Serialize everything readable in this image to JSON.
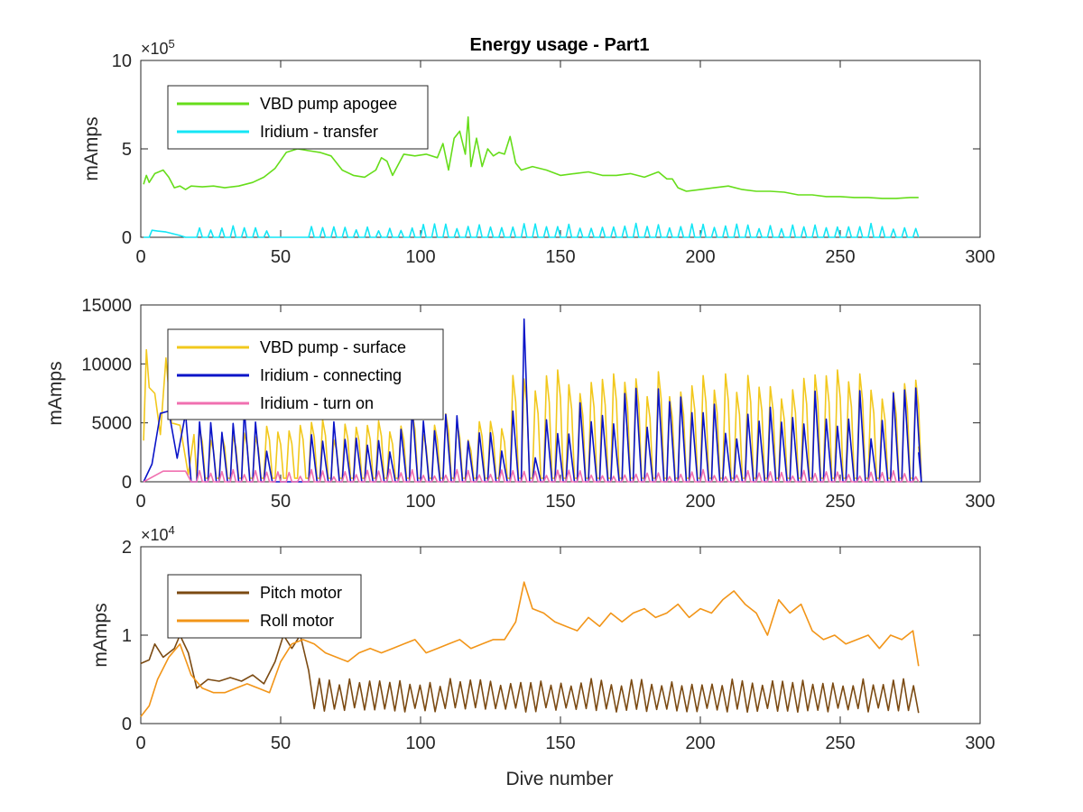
{
  "figure": {
    "title": "Energy usage - Part1",
    "xlabel": "Dive number"
  },
  "chart_data": [
    {
      "type": "line",
      "title": "Energy usage - Part1",
      "xlabel": "",
      "ylabel": "mAmps",
      "xlim": [
        0,
        300
      ],
      "ylim": [
        0,
        1000000
      ],
      "xticks": [
        0,
        50,
        100,
        150,
        200,
        250,
        300
      ],
      "yticks": [
        0,
        500000,
        1000000
      ],
      "ytick_labels": [
        "0",
        "5",
        "10"
      ],
      "exponent_label": "×10",
      "exponent_power": "5",
      "legend_position": "top-left",
      "series": [
        {
          "name": "VBD pump apogee",
          "color": "#66dd1a",
          "x": [
            1,
            2,
            3,
            5,
            8,
            10,
            12,
            14,
            16,
            18,
            22,
            26,
            30,
            35,
            40,
            44,
            48,
            52,
            56,
            60,
            64,
            68,
            72,
            76,
            80,
            84,
            86,
            88,
            90,
            94,
            98,
            102,
            106,
            108,
            110,
            112,
            114,
            116,
            117,
            118,
            120,
            122,
            124,
            126,
            128,
            130,
            132,
            134,
            136,
            140,
            145,
            150,
            155,
            160,
            165,
            170,
            175,
            180,
            185,
            188,
            190,
            192,
            195,
            200,
            205,
            210,
            215,
            220,
            225,
            230,
            235,
            240,
            245,
            250,
            255,
            260,
            265,
            270,
            275,
            278
          ],
          "y": [
            300000,
            350000,
            310000,
            360000,
            380000,
            340000,
            280000,
            290000,
            270000,
            290000,
            285000,
            290000,
            280000,
            290000,
            310000,
            340000,
            390000,
            480000,
            500000,
            490000,
            480000,
            460000,
            380000,
            350000,
            340000,
            380000,
            450000,
            430000,
            350000,
            470000,
            460000,
            470000,
            450000,
            530000,
            380000,
            560000,
            600000,
            470000,
            680000,
            400000,
            560000,
            400000,
            500000,
            460000,
            480000,
            470000,
            570000,
            420000,
            380000,
            400000,
            380000,
            350000,
            360000,
            370000,
            350000,
            350000,
            360000,
            340000,
            370000,
            330000,
            330000,
            280000,
            260000,
            270000,
            280000,
            290000,
            270000,
            260000,
            260000,
            255000,
            240000,
            240000,
            230000,
            230000,
            225000,
            225000,
            220000,
            220000,
            225000,
            225000
          ]
        },
        {
          "name": "Iridium - transfer",
          "color": "#14e6f5",
          "pattern": "periodic spikes ~30000-75000 on a near-zero baseline, one spike every ~4 dives from dive 20 to 278"
        }
      ]
    },
    {
      "type": "line",
      "xlabel": "",
      "ylabel": "mAmps",
      "xlim": [
        0,
        300
      ],
      "ylim": [
        0,
        15000
      ],
      "xticks": [
        0,
        50,
        100,
        150,
        200,
        250,
        300
      ],
      "yticks": [
        0,
        5000,
        10000,
        15000
      ],
      "ytick_labels": [
        "0",
        "5000",
        "10000",
        "15000"
      ],
      "legend_position": "top-left",
      "series": [
        {
          "name": "VBD pump - surface",
          "color": "#f2c81d",
          "pattern": "square-ish pulses between ~300 and ~4000-9500, amplitude rising after dive 130"
        },
        {
          "name": "Iridium - connecting",
          "color": "#0a14c8",
          "pattern": "periodic spikes ~2000-8000 every ~4 dives, tallest ~13800 near dive 137"
        },
        {
          "name": "Iridium - turn on",
          "color": "#f070b0",
          "pattern": "small periodic spikes ~500-1000, ~900 plateau near dives 10-18"
        }
      ]
    },
    {
      "type": "line",
      "xlabel": "Dive number",
      "ylabel": "mAmps",
      "xlim": [
        0,
        300
      ],
      "ylim": [
        0,
        20000
      ],
      "xticks": [
        0,
        50,
        100,
        150,
        200,
        250,
        300
      ],
      "yticks": [
        0,
        10000,
        20000
      ],
      "ytick_labels": [
        "0",
        "1",
        "2"
      ],
      "exponent_label": "×10",
      "exponent_power": "4",
      "legend_position": "top-left",
      "series": [
        {
          "name": "Pitch motor",
          "color": "#7b4a12",
          "pattern": "oscillation between ~1500 and ~4500 every ~4 dives; early section ~7000-10000"
        },
        {
          "name": "Roll motor",
          "color": "#f29518",
          "x": [
            0,
            3,
            6,
            10,
            14,
            18,
            22,
            26,
            30,
            34,
            38,
            42,
            46,
            50,
            54,
            58,
            62,
            66,
            70,
            74,
            78,
            82,
            86,
            90,
            94,
            98,
            102,
            106,
            110,
            114,
            118,
            122,
            126,
            130,
            134,
            137,
            140,
            144,
            148,
            152,
            156,
            160,
            164,
            168,
            172,
            176,
            180,
            184,
            188,
            192,
            196,
            200,
            204,
            208,
            212,
            216,
            220,
            224,
            228,
            232,
            236,
            240,
            244,
            248,
            252,
            256,
            260,
            264,
            268,
            272,
            276,
            278
          ],
          "y": [
            800,
            2000,
            5000,
            7500,
            9000,
            5500,
            4000,
            3500,
            3500,
            4000,
            4500,
            4000,
            3500,
            7000,
            9000,
            9500,
            9000,
            8000,
            7500,
            7000,
            8000,
            8500,
            8000,
            8500,
            9000,
            9500,
            8000,
            8500,
            9000,
            9500,
            8500,
            9000,
            9500,
            9500,
            11500,
            16000,
            13000,
            12500,
            11500,
            11000,
            10500,
            12000,
            11000,
            12500,
            11500,
            12500,
            13000,
            12000,
            12500,
            13500,
            12000,
            13000,
            12500,
            14000,
            15000,
            13500,
            12500,
            10000,
            14000,
            12500,
            13500,
            10500,
            9500,
            10000,
            9000,
            9500,
            10000,
            8500,
            10000,
            9500,
            10500,
            6500
          ]
        }
      ]
    }
  ]
}
